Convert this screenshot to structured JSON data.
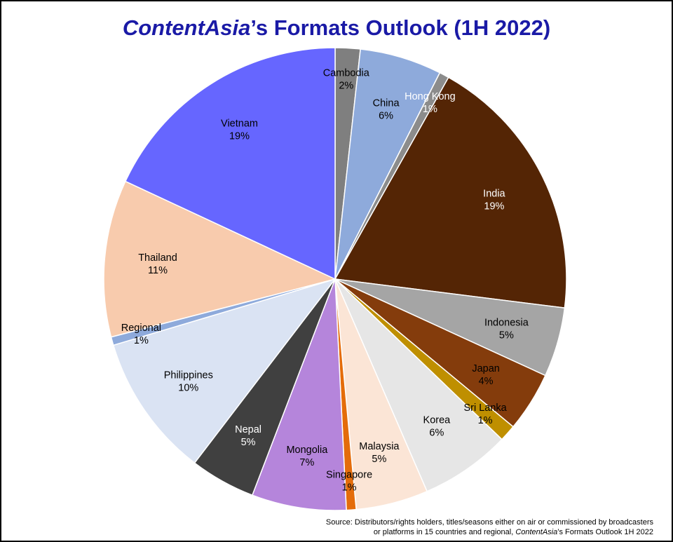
{
  "title": {
    "brand": "ContentAsia",
    "rest": "’s Formats Outlook (1H 2022)"
  },
  "source": {
    "line1": "Source: Distributors/rights holders, titles/seasons either on air or commissioned by broadcasters",
    "line2_start": "or platforms in 15 countries and regional, ",
    "line2_brand": "ContentAsia",
    "line2_end": "’s Formats Outlook 1H 2022"
  },
  "chart_data": {
    "type": "pie",
    "title": "ContentAsia’s Formats Outlook (1H 2022)",
    "start": "12 o'clock",
    "direction": "clockwise",
    "slices": [
      {
        "label": "Cambodia",
        "value_label": "2%",
        "value": 1.8,
        "color": "#7f7f7f",
        "text_color": "#000000"
      },
      {
        "label": "China",
        "value_label": "6%",
        "value": 5.9,
        "color": "#8eaadb",
        "text_color": "#000000"
      },
      {
        "label": "Hong Kong",
        "value_label": "1%",
        "value": 0.7,
        "color": "#8c8c8c",
        "text_color": "#ffffff"
      },
      {
        "label": "India",
        "value_label": "19%",
        "value": 19.4,
        "color": "#542505",
        "text_color": "#ffffff"
      },
      {
        "label": "Indonesia",
        "value_label": "5%",
        "value": 5.0,
        "color": "#a5a5a5",
        "text_color": "#000000"
      },
      {
        "label": "Japan",
        "value_label": "4%",
        "value": 4.3,
        "color": "#843c0c",
        "text_color": "#000000"
      },
      {
        "label": "Sri Lanka",
        "value_label": "1%",
        "value": 1.2,
        "color": "#bf8f00",
        "text_color": "#000000"
      },
      {
        "label": "Korea",
        "value_label": "6%",
        "value": 6.5,
        "color": "#e6e6e6",
        "text_color": "#000000"
      },
      {
        "label": "Malaysia",
        "value_label": "5%",
        "value": 5.2,
        "color": "#fbe5d6",
        "text_color": "#000000"
      },
      {
        "label": "Singapore",
        "value_label": "1%",
        "value": 0.7,
        "color": "#e46c0a",
        "text_color": "#000000"
      },
      {
        "label": "Mongolia",
        "value_label": "7%",
        "value": 6.8,
        "color": "#b585db",
        "text_color": "#000000"
      },
      {
        "label": "Nepal",
        "value_label": "5%",
        "value": 4.7,
        "color": "#404040",
        "text_color": "#ffffff"
      },
      {
        "label": "Philippines",
        "value_label": "10%",
        "value": 10.3,
        "color": "#dae3f3",
        "text_color": "#000000"
      },
      {
        "label": "Regional",
        "value_label": "1%",
        "value": 0.6,
        "color": "#8eaadb",
        "text_color": "#000000"
      },
      {
        "label": "Thailand",
        "value_label": "11%",
        "value": 11.3,
        "color": "#f8cbad",
        "text_color": "#000000"
      },
      {
        "label": "Vietnam",
        "value_label": "19%",
        "value": 18.6,
        "color": "#6666ff",
        "text_color": "#000000"
      }
    ]
  }
}
